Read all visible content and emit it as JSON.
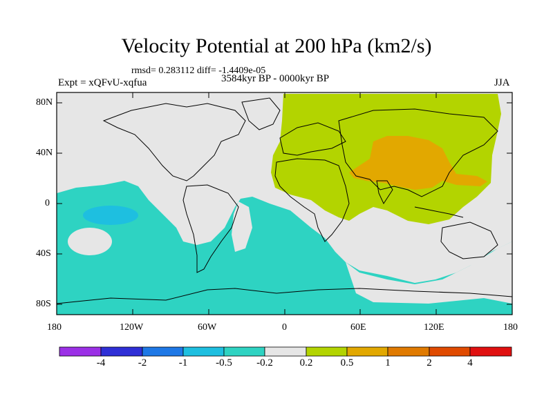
{
  "title": "Velocity Potential at 200 hPa (km2/s)",
  "stats": "rmsd= 0.283112 diff= -1.4409e-05",
  "experiment": "Expt = xQFvU-xqfua",
  "period": "3584kyr BP - 0000kyr BP",
  "season": "JJA",
  "axes": {
    "lat_labels": [
      "80N",
      "40N",
      "0",
      "40S",
      "80S"
    ],
    "lon_labels": [
      "180",
      "120W",
      "60W",
      "0",
      "60E",
      "120E",
      "180"
    ]
  },
  "colorbar": {
    "labels": [
      "-4",
      "-2",
      "-1",
      "-0.5",
      "-0.2",
      "0.2",
      "0.5",
      "1",
      "2",
      "4"
    ],
    "colors": [
      "#9b30e6",
      "#2f2fd6",
      "#1e78e6",
      "#1ebfe0",
      "#2ed3c2",
      "#e6e6e6",
      "#b3d400",
      "#e2a800",
      "#e07a00",
      "#e04a00",
      "#e01010"
    ]
  },
  "colors": {
    "neutral": "#e6e6e6",
    "cyan": "#2ed3c2",
    "blue": "#1ebfe0",
    "green": "#b3d400",
    "orange": "#e2a800"
  }
}
